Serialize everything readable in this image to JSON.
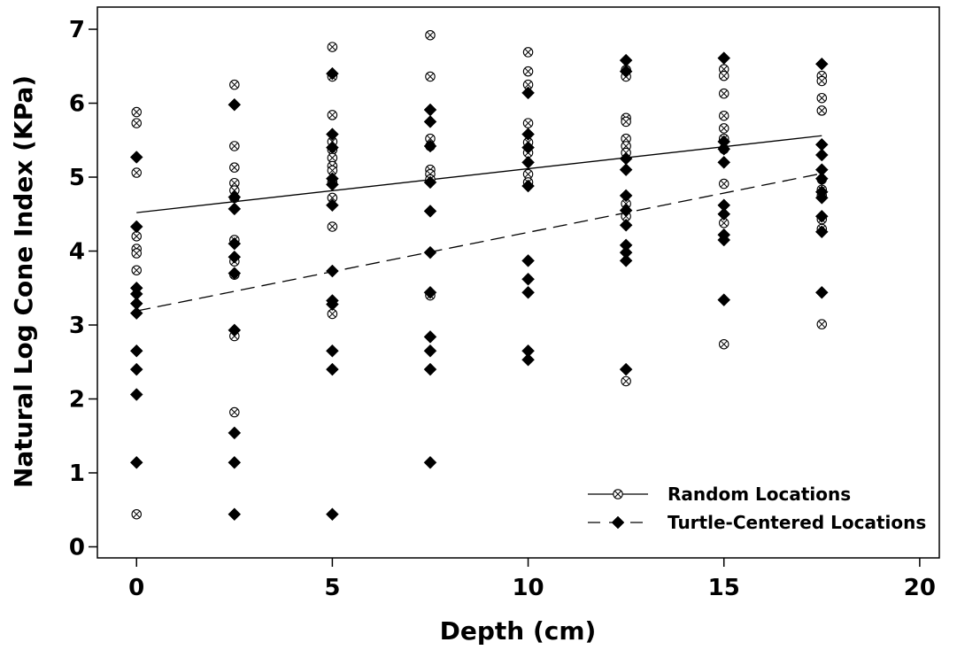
{
  "chart_data": {
    "type": "scatter",
    "title": "",
    "xlabel": "Depth (cm)",
    "ylabel": "Natural Log Cone Index (KPa)",
    "xlim": [
      -1,
      20.5
    ],
    "ylim": [
      -0.15,
      7.3
    ],
    "xticks": [
      0,
      5,
      10,
      15,
      20
    ],
    "yticks": [
      0,
      1,
      2,
      3,
      4,
      5,
      6,
      7
    ],
    "grid": false,
    "legend_position": "bottom-right",
    "series": [
      {
        "name": "Random Locations",
        "marker": "circle-x",
        "line_style": "solid",
        "color": "#000000",
        "fit_line": {
          "x": [
            0,
            17.5
          ],
          "y": [
            4.52,
            5.56
          ]
        },
        "points": [
          [
            0,
            5.88
          ],
          [
            0,
            5.73
          ],
          [
            0,
            5.06
          ],
          [
            0,
            4.2
          ],
          [
            0,
            4.03
          ],
          [
            0,
            3.97
          ],
          [
            0,
            3.74
          ],
          [
            0,
            0.44
          ],
          [
            2.5,
            6.25
          ],
          [
            2.5,
            5.42
          ],
          [
            2.5,
            5.13
          ],
          [
            2.5,
            4.92
          ],
          [
            2.5,
            4.82
          ],
          [
            2.5,
            4.72
          ],
          [
            2.5,
            4.15
          ],
          [
            2.5,
            3.86
          ],
          [
            2.5,
            3.68
          ],
          [
            2.5,
            2.85
          ],
          [
            2.5,
            1.82
          ],
          [
            5,
            6.76
          ],
          [
            5,
            6.36
          ],
          [
            5,
            5.84
          ],
          [
            5,
            5.48
          ],
          [
            5,
            5.37
          ],
          [
            5,
            5.26
          ],
          [
            5,
            5.15
          ],
          [
            5,
            5.09
          ],
          [
            5,
            4.93
          ],
          [
            5,
            4.72
          ],
          [
            5,
            4.33
          ],
          [
            5,
            3.15
          ],
          [
            7.5,
            6.92
          ],
          [
            7.5,
            6.36
          ],
          [
            7.5,
            5.52
          ],
          [
            7.5,
            5.42
          ],
          [
            7.5,
            5.1
          ],
          [
            7.5,
            5.04
          ],
          [
            7.5,
            4.97
          ],
          [
            7.5,
            3.4
          ],
          [
            10,
            6.69
          ],
          [
            10,
            6.43
          ],
          [
            10,
            6.25
          ],
          [
            10,
            5.73
          ],
          [
            10,
            5.47
          ],
          [
            10,
            5.33
          ],
          [
            10,
            5.04
          ],
          [
            10,
            4.93
          ],
          [
            12.5,
            6.45
          ],
          [
            12.5,
            6.36
          ],
          [
            12.5,
            5.8
          ],
          [
            12.5,
            5.75
          ],
          [
            12.5,
            5.52
          ],
          [
            12.5,
            5.42
          ],
          [
            12.5,
            5.33
          ],
          [
            12.5,
            4.64
          ],
          [
            12.5,
            4.47
          ],
          [
            12.5,
            2.24
          ],
          [
            15,
            6.46
          ],
          [
            15,
            6.37
          ],
          [
            15,
            6.13
          ],
          [
            15,
            5.83
          ],
          [
            15,
            5.66
          ],
          [
            15,
            5.52
          ],
          [
            15,
            5.38
          ],
          [
            15,
            4.91
          ],
          [
            15,
            4.38
          ],
          [
            15,
            2.74
          ],
          [
            17.5,
            6.37
          ],
          [
            17.5,
            6.3
          ],
          [
            17.5,
            6.07
          ],
          [
            17.5,
            5.9
          ],
          [
            17.5,
            4.97
          ],
          [
            17.5,
            4.83
          ],
          [
            17.5,
            4.75
          ],
          [
            17.5,
            4.43
          ],
          [
            17.5,
            4.3
          ],
          [
            17.5,
            3.01
          ]
        ]
      },
      {
        "name": "Turtle-Centered Locations",
        "marker": "diamond",
        "line_style": "dashed",
        "color": "#000000",
        "fit_line": {
          "x": [
            0,
            17.5
          ],
          "y": [
            3.19,
            5.05
          ]
        },
        "points": [
          [
            0,
            5.27
          ],
          [
            0,
            4.33
          ],
          [
            0,
            3.5
          ],
          [
            0,
            3.42
          ],
          [
            0,
            3.29
          ],
          [
            0,
            3.16
          ],
          [
            0,
            2.65
          ],
          [
            0,
            2.4
          ],
          [
            0,
            2.06
          ],
          [
            0,
            1.14
          ],
          [
            2.5,
            5.98
          ],
          [
            2.5,
            4.73
          ],
          [
            2.5,
            4.57
          ],
          [
            2.5,
            4.1
          ],
          [
            2.5,
            3.92
          ],
          [
            2.5,
            3.7
          ],
          [
            2.5,
            2.93
          ],
          [
            2.5,
            1.54
          ],
          [
            2.5,
            1.14
          ],
          [
            2.5,
            0.44
          ],
          [
            5,
            6.4
          ],
          [
            5,
            5.58
          ],
          [
            5,
            5.4
          ],
          [
            5,
            4.98
          ],
          [
            5,
            4.9
          ],
          [
            5,
            4.62
          ],
          [
            5,
            3.73
          ],
          [
            5,
            3.33
          ],
          [
            5,
            3.28
          ],
          [
            5,
            2.65
          ],
          [
            5,
            2.4
          ],
          [
            5,
            0.44
          ],
          [
            7.5,
            5.91
          ],
          [
            7.5,
            5.75
          ],
          [
            7.5,
            5.42
          ],
          [
            7.5,
            4.93
          ],
          [
            7.5,
            4.54
          ],
          [
            7.5,
            3.98
          ],
          [
            7.5,
            3.44
          ],
          [
            7.5,
            2.84
          ],
          [
            7.5,
            2.65
          ],
          [
            7.5,
            2.4
          ],
          [
            7.5,
            1.14
          ],
          [
            10,
            6.14
          ],
          [
            10,
            5.58
          ],
          [
            10,
            5.4
          ],
          [
            10,
            5.2
          ],
          [
            10,
            4.88
          ],
          [
            10,
            3.87
          ],
          [
            10,
            3.62
          ],
          [
            10,
            3.44
          ],
          [
            10,
            2.65
          ],
          [
            10,
            2.53
          ],
          [
            12.5,
            6.58
          ],
          [
            12.5,
            6.43
          ],
          [
            12.5,
            5.25
          ],
          [
            12.5,
            5.1
          ],
          [
            12.5,
            4.75
          ],
          [
            12.5,
            4.55
          ],
          [
            12.5,
            4.35
          ],
          [
            12.5,
            4.08
          ],
          [
            12.5,
            3.98
          ],
          [
            12.5,
            3.87
          ],
          [
            12.5,
            2.4
          ],
          [
            15,
            6.61
          ],
          [
            15,
            5.48
          ],
          [
            15,
            5.38
          ],
          [
            15,
            5.2
          ],
          [
            15,
            4.62
          ],
          [
            15,
            4.5
          ],
          [
            15,
            4.22
          ],
          [
            15,
            4.15
          ],
          [
            15,
            3.34
          ],
          [
            17.5,
            6.53
          ],
          [
            17.5,
            5.44
          ],
          [
            17.5,
            5.3
          ],
          [
            17.5,
            5.1
          ],
          [
            17.5,
            4.98
          ],
          [
            17.5,
            4.8
          ],
          [
            17.5,
            4.72
          ],
          [
            17.5,
            4.47
          ],
          [
            17.5,
            4.26
          ],
          [
            17.5,
            3.44
          ]
        ]
      }
    ]
  }
}
